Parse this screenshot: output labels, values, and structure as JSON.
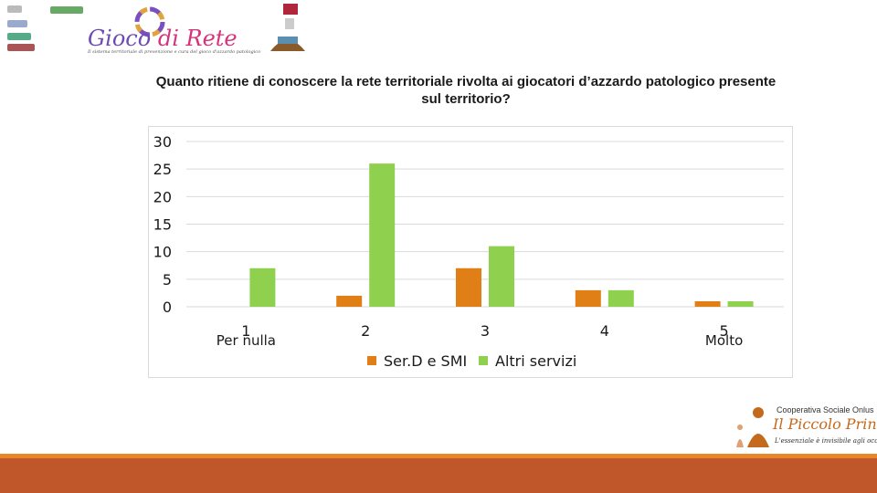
{
  "header": {
    "brand_title_main": "Gioco ",
    "brand_title_accent": "di Rete",
    "brand_subtitle": "Il sistema territoriale di prevenzione e cura del gioco d'azzardo patologico"
  },
  "colors": {
    "serd": "#e07f16",
    "altri": "#8fd14f",
    "grid": "#d9d9d9",
    "footer_bar": "#c0572b",
    "footer_line": "#e8862b"
  },
  "chart_data": {
    "type": "bar",
    "title": "Quanto ritiene di conoscere la rete territoriale rivolta ai giocatori d’azzardo patologico presente sul territorio?",
    "categories": [
      "1",
      "2",
      "3",
      "4",
      "5"
    ],
    "category_sublabels": [
      "Per nulla",
      "",
      "",
      "",
      "Molto"
    ],
    "series": [
      {
        "name": "Ser.D e SMI",
        "values": [
          0,
          2,
          7,
          3,
          1
        ]
      },
      {
        "name": "Altri servizi",
        "values": [
          7,
          26,
          11,
          3,
          1
        ]
      }
    ],
    "ylim": [
      0,
      30
    ],
    "yticks": [
      0,
      5,
      10,
      15,
      20,
      25,
      30
    ],
    "grid": true,
    "legend_position": "bottom"
  },
  "footer_logo": {
    "name": "Cooperativa Sociale Onlus",
    "brand": "Il Piccolo Principe",
    "motto": "L'essenziale è invisibile agli occhi"
  }
}
